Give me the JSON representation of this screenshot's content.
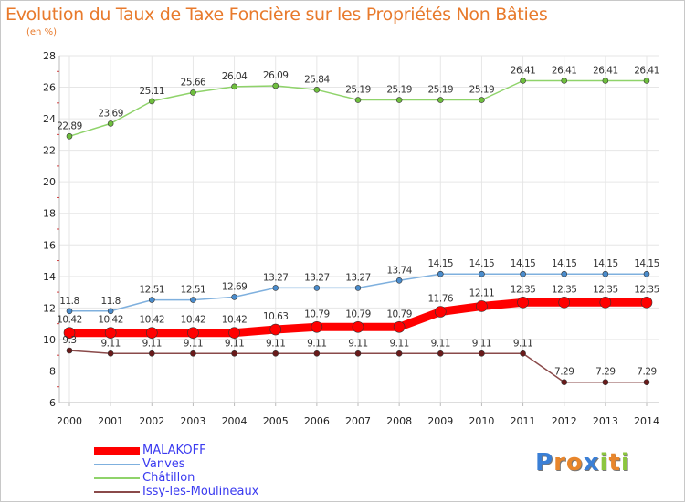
{
  "title": "Evolution du Taux de Taxe Foncière sur les Propriétés Non Bâties",
  "subtitle": "(en %)",
  "logo": {
    "letters": [
      "P",
      "r",
      "o",
      "x",
      "i",
      "t",
      "i"
    ],
    "colors": [
      "#3a7fd6",
      "#e8862c",
      "#e8862c",
      "#3a7fd6",
      "#8cc63f",
      "#e8862c",
      "#8cc63f"
    ]
  },
  "chart_data": {
    "type": "line",
    "title": "Evolution du Taux de Taxe Foncière sur les Propriétés Non Bâties",
    "ylabel": "(en %)",
    "xlabel": "",
    "ylim": [
      6,
      28
    ],
    "yticks": [
      6,
      8,
      10,
      12,
      14,
      16,
      18,
      20,
      22,
      24,
      26,
      28
    ],
    "grid": true,
    "legend_position": "bottom-left",
    "x": [
      "2000",
      "2001",
      "2002",
      "2003",
      "2004",
      "2005",
      "2006",
      "2007",
      "2008",
      "2009",
      "2010",
      "2011",
      "2012",
      "2013",
      "2014"
    ],
    "series": [
      {
        "name": "Châtillon",
        "color": "#8fd36a",
        "marker": "#6fbf3e",
        "width": 1.5,
        "values": [
          22.89,
          23.69,
          25.11,
          25.66,
          26.04,
          26.09,
          25.84,
          25.19,
          25.19,
          25.19,
          25.19,
          26.41,
          26.41,
          26.41,
          26.41
        ],
        "labels": [
          "22.89",
          "23.69",
          "25.11",
          "25.66",
          "26.04",
          "26.09",
          "25.84",
          "25.19",
          "25.19",
          "25.19",
          "25.19",
          "26.41",
          "26.41",
          "26.41",
          "26.41"
        ]
      },
      {
        "name": "Vanves",
        "color": "#7fb0de",
        "marker": "#4a8ccc",
        "width": 1.5,
        "values": [
          11.8,
          11.8,
          12.51,
          12.51,
          12.69,
          13.27,
          13.27,
          13.27,
          13.74,
          14.15,
          14.15,
          14.15,
          14.15,
          14.15,
          14.15
        ],
        "labels": [
          "11.8",
          "11.8",
          "12.51",
          "12.51",
          "12.69",
          "13.27",
          "13.27",
          "13.27",
          "13.74",
          "14.15",
          "14.15",
          "14.15",
          "14.15",
          "14.15",
          "14.15"
        ]
      },
      {
        "name": "MALAKOFF",
        "color": "#ff0000",
        "marker": "#ff0000",
        "width": 9,
        "values": [
          10.42,
          10.42,
          10.42,
          10.42,
          10.42,
          10.63,
          10.79,
          10.79,
          10.79,
          11.76,
          12.11,
          12.35,
          12.35,
          12.35,
          12.35
        ],
        "labels": [
          "10.42",
          "10.42",
          "10.42",
          "10.42",
          "10.42",
          "10.63",
          "10.79",
          "10.79",
          "10.79",
          "11.76",
          "12.11",
          "12.35",
          "12.35",
          "12.35",
          "12.35"
        ]
      },
      {
        "name": "Issy-les-Moulineaux",
        "color": "#8a4a4a",
        "marker": "#6a1a1a",
        "width": 1.5,
        "values": [
          9.3,
          9.11,
          9.11,
          9.11,
          9.11,
          9.11,
          9.11,
          9.11,
          9.11,
          9.11,
          9.11,
          9.11,
          7.29,
          7.29,
          7.29
        ],
        "labels": [
          "9.3",
          "9.11",
          "9.11",
          "9.11",
          "9.11",
          "9.11",
          "9.11",
          "9.11",
          "9.11",
          "9.11",
          "9.11",
          "9.11",
          "7.29",
          "7.29",
          "7.29"
        ]
      }
    ],
    "legend": [
      {
        "name": "MALAKOFF",
        "color": "#ff0000",
        "width": 9
      },
      {
        "name": "Vanves",
        "color": "#7fb0de",
        "width": 1.5
      },
      {
        "name": "Châtillon",
        "color": "#8fd36a",
        "width": 1.5
      },
      {
        "name": "Issy-les-Moulineaux",
        "color": "#8a4a4a",
        "width": 1.5
      }
    ]
  }
}
